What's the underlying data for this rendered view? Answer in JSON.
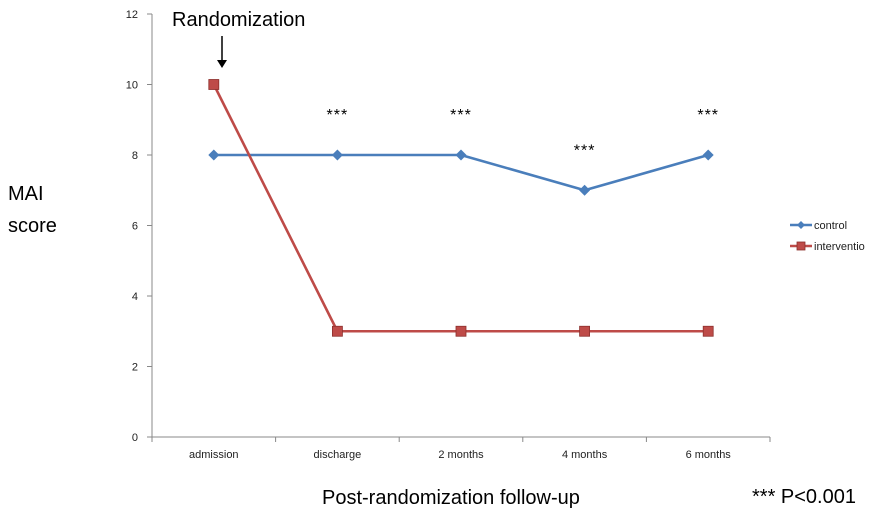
{
  "chart_data": {
    "type": "line",
    "categories": [
      "admission",
      "discharge",
      "2 months",
      "4 months",
      "6 months"
    ],
    "series": [
      {
        "name": "control",
        "values": [
          8,
          8,
          8,
          7,
          8
        ],
        "color": "#4a7ebb",
        "marker": "diamond"
      },
      {
        "name": "interventio",
        "values": [
          10,
          3,
          3,
          3,
          3
        ],
        "color": "#be4b48",
        "marker": "square"
      }
    ],
    "ylim": [
      0,
      12
    ],
    "yticks": [
      0,
      2,
      4,
      6,
      8,
      10,
      12
    ],
    "ylabel_line1": "MAI",
    "ylabel_line2": "score",
    "xlabel": "Post-randomization follow-up",
    "legend_position": "right",
    "grid": false,
    "annotations": {
      "randomization": "Randomization",
      "significance_marks": [
        "",
        "***",
        "***",
        "***",
        "***"
      ],
      "footnote": "*** P<0.001"
    }
  }
}
